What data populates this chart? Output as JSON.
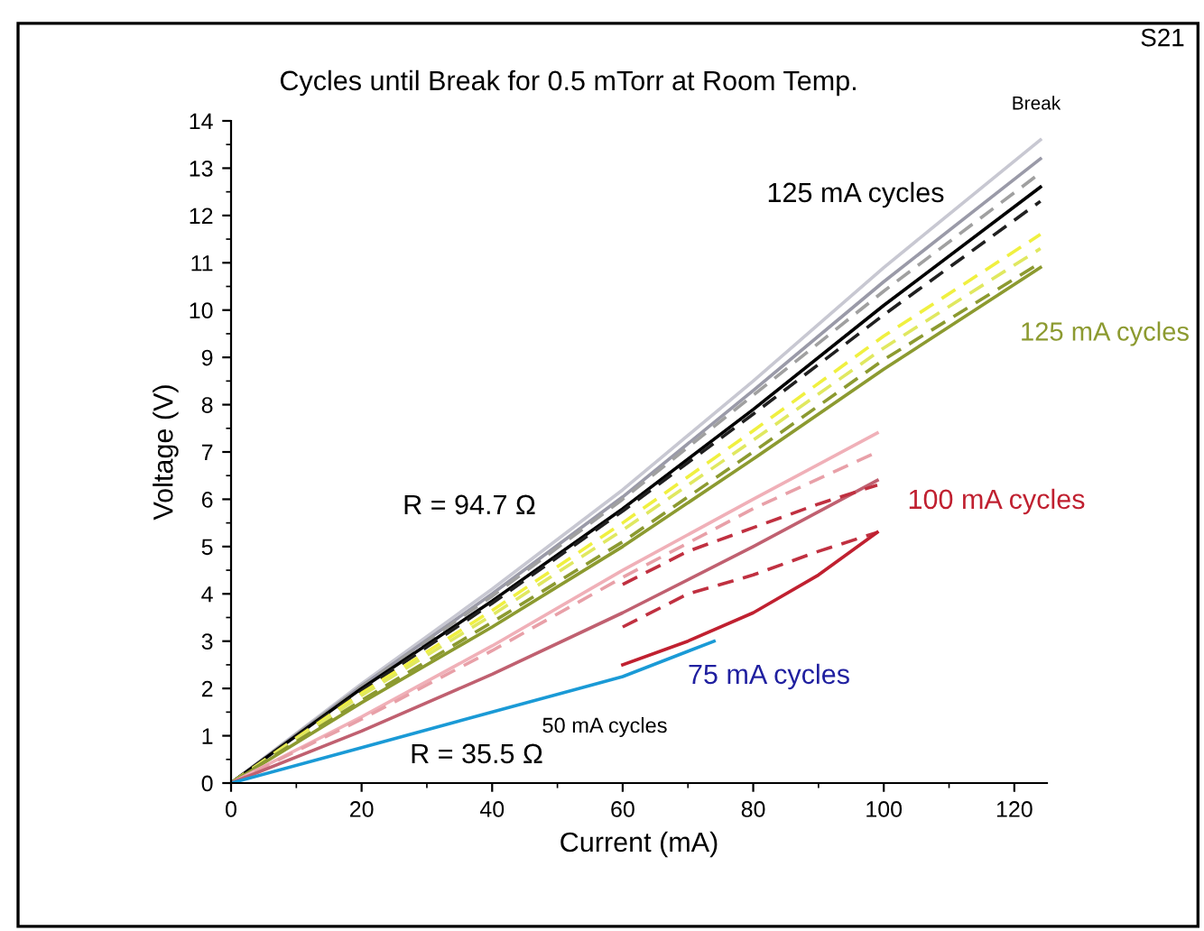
{
  "chart_data": {
    "type": "line",
    "title": "Cycles until Break for 0.5 mTorr at Room Temp.",
    "xlabel": "Current (mA)",
    "ylabel": "Voltage (V)",
    "xlim": [
      0,
      125
    ],
    "ylim": [
      0,
      14
    ],
    "xticks": [
      0,
      20,
      40,
      60,
      80,
      100,
      120
    ],
    "yticks": [
      0,
      1,
      2,
      3,
      4,
      5,
      6,
      7,
      8,
      9,
      10,
      11,
      12,
      13,
      14
    ],
    "grid": false,
    "legend": false,
    "marker": "none",
    "series": [
      {
        "color": "#c8c8d2",
        "line_style": "solid",
        "x": [
          0,
          20,
          40,
          60,
          80,
          100,
          124
        ],
        "values": [
          0,
          2.1,
          4.1,
          6.2,
          8.5,
          10.9,
          13.6
        ]
      },
      {
        "color": "#9a9aa8",
        "line_style": "solid",
        "x": [
          0,
          20,
          40,
          60,
          80,
          100,
          124
        ],
        "values": [
          0,
          2.05,
          4.0,
          6.05,
          8.3,
          10.6,
          13.2
        ]
      },
      {
        "color": "#a0a0a0",
        "line_style": "dashed",
        "x": [
          0,
          20,
          40,
          60,
          80,
          100,
          124
        ],
        "values": [
          0,
          2.05,
          3.95,
          6.0,
          8.2,
          10.4,
          12.9
        ]
      },
      {
        "color": "#000000",
        "line_style": "solid",
        "x": [
          0,
          20,
          40,
          60,
          80,
          100,
          124
        ],
        "values": [
          0,
          2.0,
          3.85,
          5.8,
          7.9,
          10.1,
          12.6
        ]
      },
      {
        "color": "#202020",
        "line_style": "dashed",
        "x": [
          0,
          20,
          40,
          60,
          80,
          100,
          124
        ],
        "values": [
          0,
          1.95,
          3.8,
          5.75,
          7.8,
          9.9,
          12.3
        ]
      },
      {
        "color": "#f0f040",
        "line_style": "dashed",
        "x": [
          0,
          20,
          40,
          60,
          80,
          100,
          124
        ],
        "values": [
          0,
          1.9,
          3.65,
          5.5,
          7.45,
          9.45,
          11.6
        ]
      },
      {
        "color": "#e0e860",
        "line_style": "dashed",
        "x": [
          0,
          20,
          40,
          60,
          80,
          100,
          124
        ],
        "values": [
          0,
          1.85,
          3.55,
          5.35,
          7.25,
          9.2,
          11.3
        ]
      },
      {
        "color": "#8c9a30",
        "line_style": "dashed",
        "x": [
          0,
          20,
          40,
          60,
          80,
          100,
          124
        ],
        "values": [
          0,
          1.75,
          3.4,
          5.1,
          7.0,
          8.95,
          11.0
        ]
      },
      {
        "color": "#8c9a30",
        "line_style": "solid",
        "x": [
          0,
          20,
          40,
          60,
          80,
          100,
          124
        ],
        "values": [
          0,
          1.7,
          3.3,
          5.0,
          6.85,
          8.75,
          10.9
        ]
      },
      {
        "color": "#f0b0b8",
        "line_style": "solid",
        "x": [
          0,
          20,
          40,
          60,
          80,
          99
        ],
        "values": [
          0,
          1.4,
          2.9,
          4.5,
          6.0,
          7.4
        ]
      },
      {
        "color": "#e8a0a8",
        "line_style": "dashed",
        "x": [
          0,
          20,
          40,
          60,
          80,
          99
        ],
        "values": [
          0,
          1.35,
          2.8,
          4.35,
          5.8,
          7.0
        ]
      },
      {
        "color": "#c06070",
        "line_style": "solid",
        "x": [
          0,
          20,
          40,
          60,
          80,
          99
        ],
        "values": [
          0,
          1.1,
          2.3,
          3.6,
          5.0,
          6.4
        ]
      },
      {
        "color": "#c03040",
        "line_style": "dashed",
        "x": [
          60,
          70,
          80,
          90,
          99
        ],
        "values": [
          4.2,
          4.9,
          5.4,
          5.9,
          6.3
        ]
      },
      {
        "color": "#c03040",
        "line_style": "dashed",
        "x": [
          60,
          70,
          80,
          90,
          99
        ],
        "values": [
          3.3,
          4.0,
          4.4,
          4.9,
          5.3
        ]
      },
      {
        "color": "#c02030",
        "line_style": "solid",
        "x": [
          60,
          70,
          80,
          90,
          99
        ],
        "values": [
          2.5,
          3.0,
          3.6,
          4.4,
          5.3
        ]
      },
      {
        "color": "#1a9ad6",
        "line_style": "solid",
        "x": [
          0,
          20,
          40,
          60,
          74
        ],
        "values": [
          0,
          0.75,
          1.5,
          2.25,
          3.0
        ]
      }
    ],
    "annotations": [
      "S21",
      "Break",
      "125 mA cycles",
      "125 mA cycles",
      "100 mA cycles",
      "75 mA cycles",
      "50 mA cycles",
      "R = 94.7 Ω",
      "R = 35.5 Ω"
    ]
  }
}
